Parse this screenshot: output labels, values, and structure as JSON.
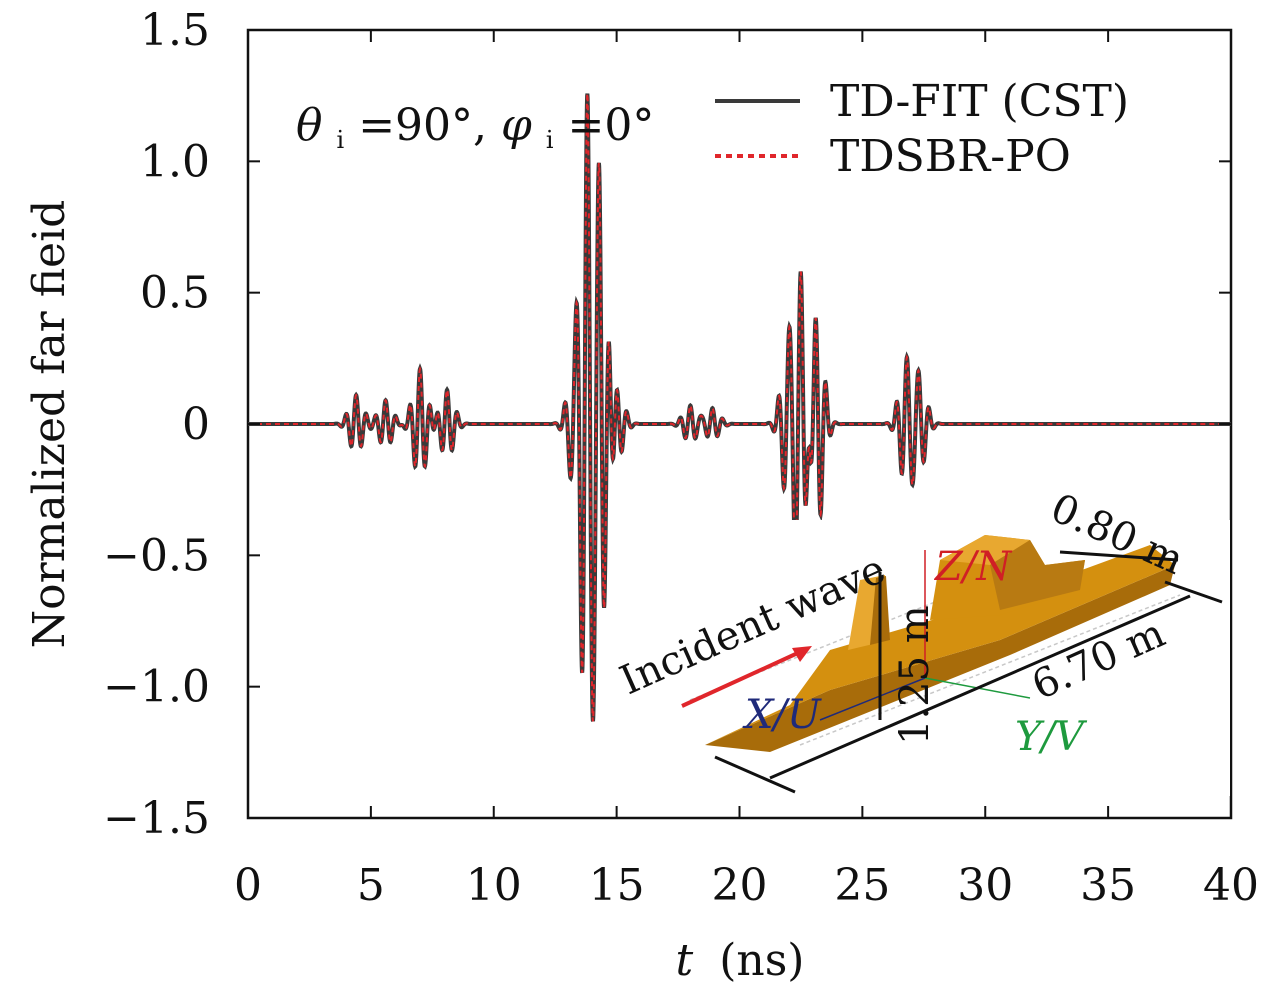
{
  "chart_data": {
    "type": "line",
    "xlabel_var": "t",
    "xlabel_unit": "(ns)",
    "ylabel": "Normalized far fieid",
    "xlim": [
      0,
      40
    ],
    "ylim": [
      -1.5,
      1.5
    ],
    "x_ticks": [
      0,
      5,
      10,
      15,
      20,
      25,
      30,
      35,
      40
    ],
    "x_tick_labels": [
      "0",
      "5",
      "10",
      "15",
      "20",
      "25",
      "30",
      "35",
      "40"
    ],
    "y_ticks": [
      1.5,
      1.0,
      0.5,
      0,
      -0.5,
      -1.0,
      -1.5
    ],
    "y_tick_labels": [
      "1.5",
      "1.0",
      "0.5",
      "0",
      "−0.5",
      "−1.0",
      "−1.5"
    ],
    "grid": false,
    "legend_position": "top-right",
    "series": [
      {
        "name": "TD-FIT (CST)",
        "style": "solid",
        "color": "#3a3a3a"
      },
      {
        "name": "TDSBR-PO",
        "style": "dashed",
        "color": "#e0262b"
      }
    ],
    "pulses": [
      {
        "t": 4.4,
        "amp": 0.11,
        "freq": 2.4
      },
      {
        "t": 5.6,
        "amp": 0.09,
        "freq": 2.4
      },
      {
        "t": 7.0,
        "amp": 0.21,
        "freq": 2.4
      },
      {
        "t": 8.1,
        "amp": 0.13,
        "freq": 2.4
      },
      {
        "t": 13.3,
        "amp": 0.22,
        "freq": 2.4
      },
      {
        "t": 13.8,
        "amp": 1.18,
        "freq": 2.4
      },
      {
        "t": 14.3,
        "amp": 0.88,
        "freq": 2.4
      },
      {
        "t": 15.0,
        "amp": 0.14,
        "freq": 2.4
      },
      {
        "t": 18.0,
        "amp": 0.07,
        "freq": 2.4
      },
      {
        "t": 18.9,
        "amp": 0.06,
        "freq": 2.4
      },
      {
        "t": 22.0,
        "amp": 0.3,
        "freq": 2.4
      },
      {
        "t": 22.5,
        "amp": 0.6,
        "freq": 2.4
      },
      {
        "t": 23.1,
        "amp": 0.46,
        "freq": 2.4
      },
      {
        "t": 26.8,
        "amp": 0.24,
        "freq": 2.4
      },
      {
        "t": 27.3,
        "amp": 0.18,
        "freq": 2.4
      }
    ]
  },
  "annotation": {
    "theta": "θ",
    "theta_sub": "i",
    "theta_val": "=90°, ",
    "phi": "φ",
    "phi_sub": "i",
    "phi_val": "=0°"
  },
  "legend": {
    "items": [
      "TD-FIT (CST)",
      "TDSBR-PO"
    ]
  },
  "inset": {
    "incident_wave_label": "Incident wave",
    "dim_width": "0.80 m",
    "dim_height": "1.25 m",
    "dim_length": "6.70 m",
    "axis_x": "X/U",
    "axis_y": "Y/V",
    "axis_z": "Z/N",
    "colors": {
      "hull": "#d4900f",
      "hull_dark": "#a86c0a",
      "hull_light": "#e8a830",
      "arrow": "#e0262b",
      "axis_x": "#1f2a7a",
      "axis_y": "#1e9a3e",
      "axis_z": "#d01f25"
    }
  }
}
